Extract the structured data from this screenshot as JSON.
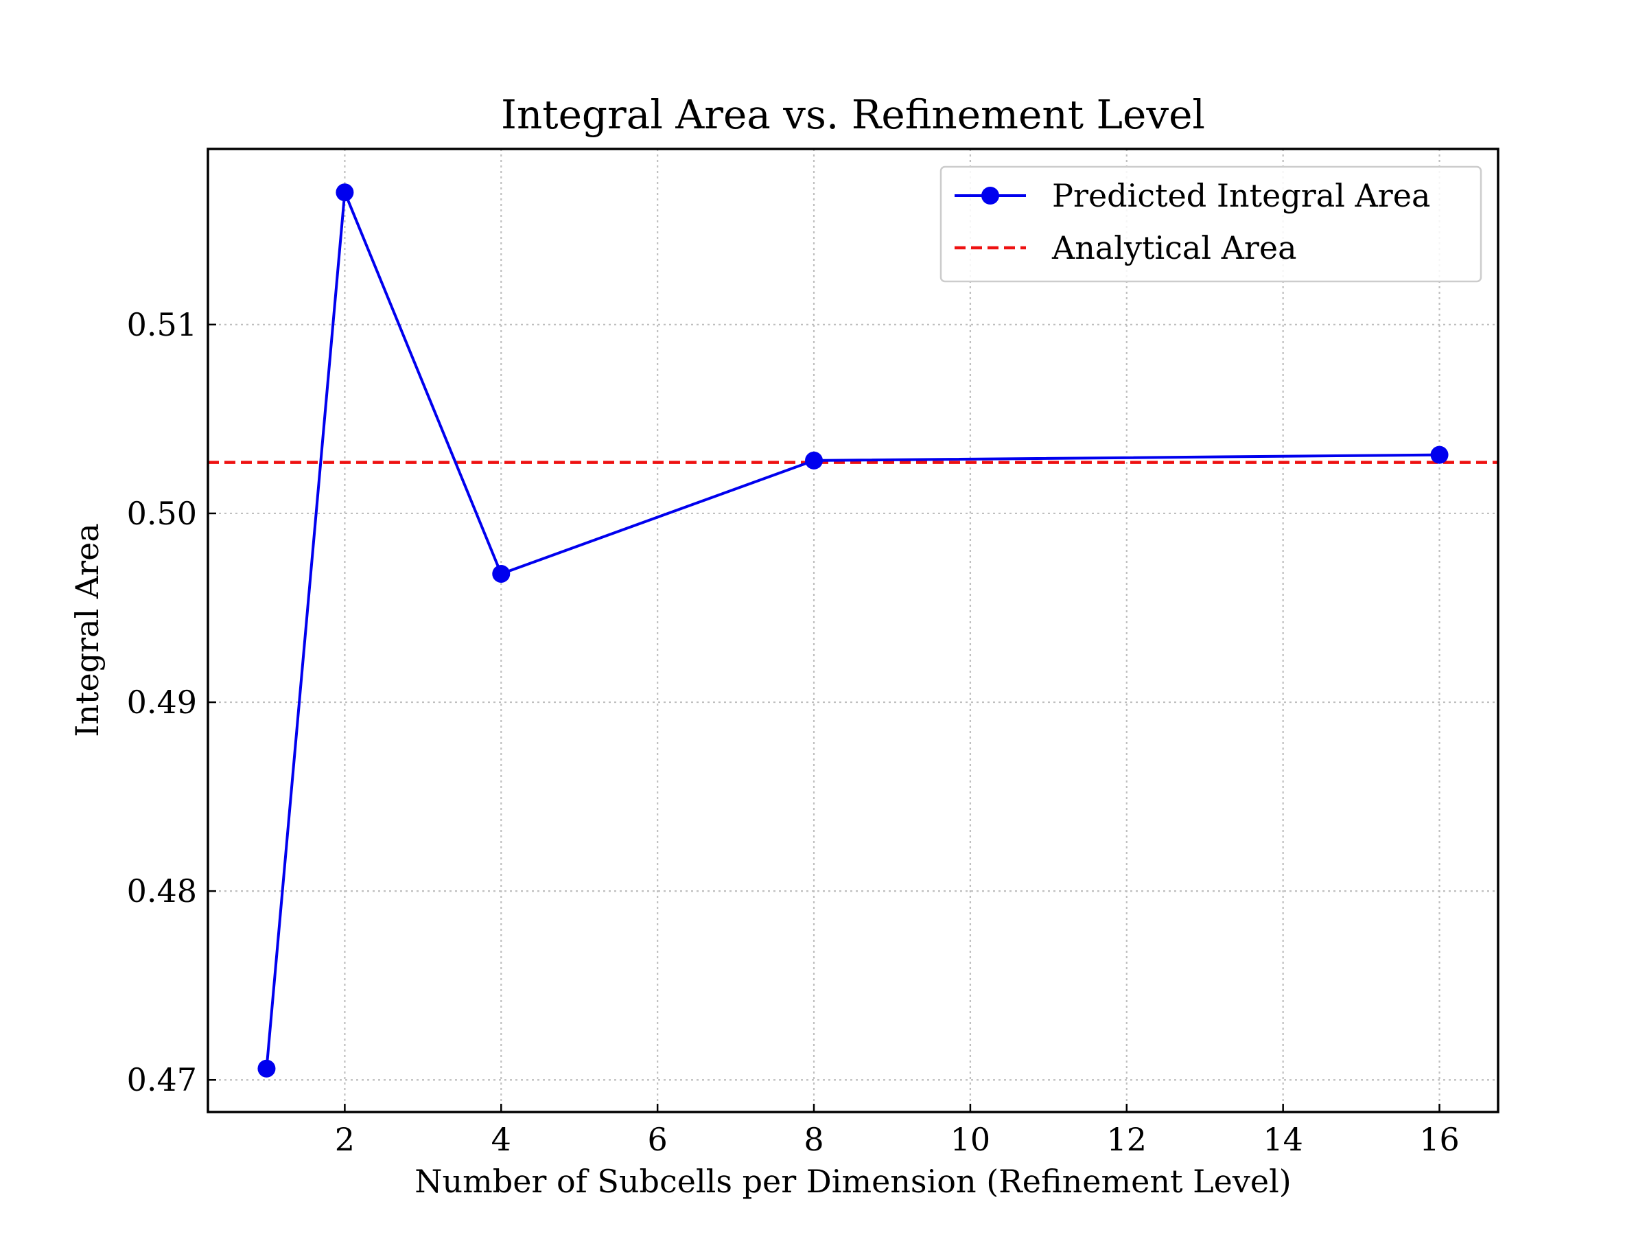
{
  "chart_data": {
    "type": "line",
    "title": "Integral Area vs. Refinement Level",
    "xlabel": "Number of Subcells per Dimension (Refinement Level)",
    "ylabel": "Integral Area",
    "xlim": [
      0.25,
      16.75
    ],
    "ylim": [
      0.4683,
      0.5193
    ],
    "xticks": [
      2,
      4,
      6,
      8,
      10,
      12,
      14,
      16
    ],
    "yticks": [
      0.47,
      0.48,
      0.49,
      0.5,
      0.51
    ],
    "xtick_labels": [
      "2",
      "4",
      "6",
      "8",
      "10",
      "12",
      "14",
      "16"
    ],
    "ytick_labels": [
      "0.47",
      "0.48",
      "0.49",
      "0.50",
      "0.51"
    ],
    "grid": true,
    "legend_position": "top-right",
    "series": [
      {
        "name": "Predicted Integral Area",
        "color": "#0000ee",
        "marker": "circle",
        "line_style": "solid",
        "x": [
          1,
          2,
          4,
          8,
          16
        ],
        "y": [
          0.4706,
          0.517,
          0.4968,
          0.5028,
          0.5031
        ]
      }
    ],
    "reference_lines": [
      {
        "name": "Analytical Area",
        "color": "#ee1111",
        "line_style": "dashed",
        "y": 0.5027
      }
    ]
  }
}
